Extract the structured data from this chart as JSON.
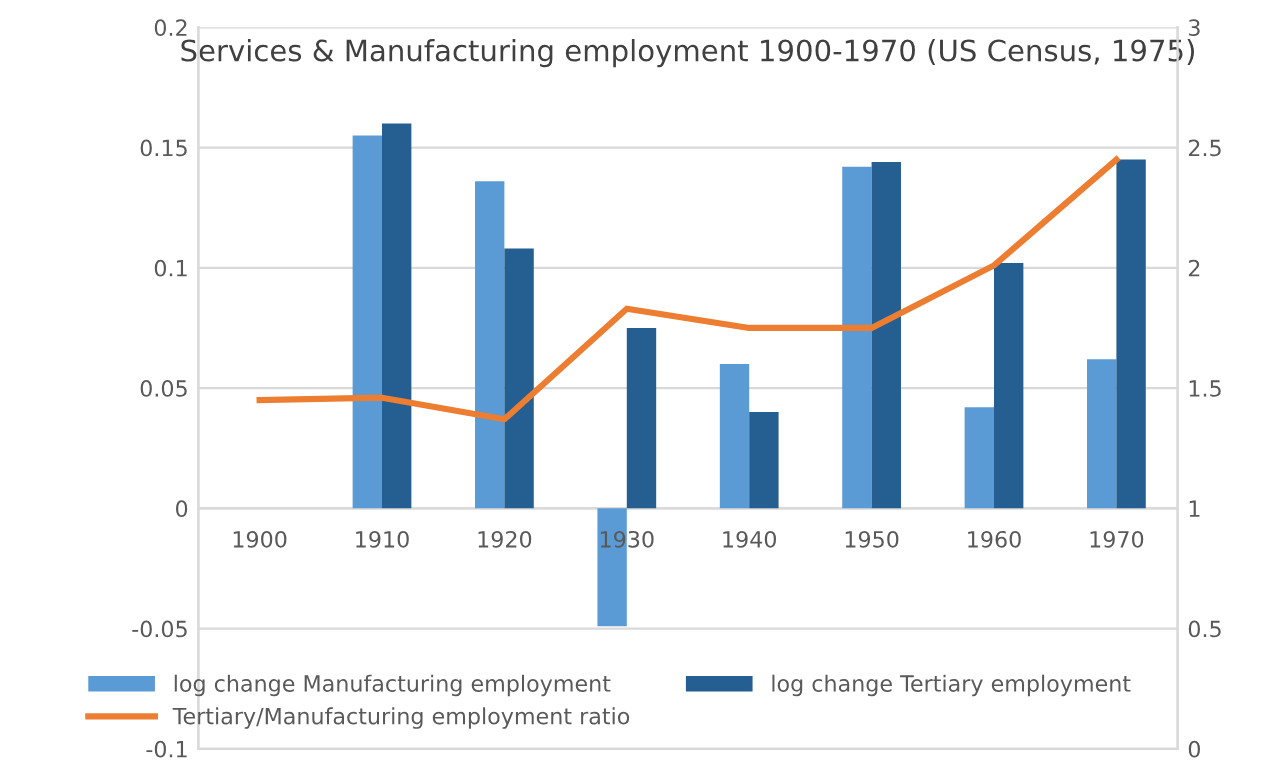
{
  "chart_data": {
    "type": "bar",
    "title": "Services & Manufacturing employment 1900-1970 (US Census, 1975)",
    "categories": [
      "1900",
      "1910",
      "1920",
      "1930",
      "1940",
      "1950",
      "1960",
      "1970"
    ],
    "series": [
      {
        "name": "log change Manufacturing employment",
        "color": "#5b9bd5",
        "values": [
          null,
          0.155,
          0.136,
          -0.049,
          0.06,
          0.142,
          0.042,
          0.062
        ]
      },
      {
        "name": "log change Tertiary employment",
        "color": "#255e91",
        "values": [
          null,
          0.16,
          0.108,
          0.075,
          0.04,
          0.144,
          0.102,
          0.145
        ]
      },
      {
        "name": "Tertiary/Manufacturing employment ratio",
        "type": "line",
        "axis": "y2",
        "color": "#ed7d31",
        "values": [
          1.45,
          1.46,
          1.37,
          1.83,
          1.75,
          1.75,
          2.01,
          2.45
        ]
      }
    ],
    "ylim": [
      -0.1,
      0.2
    ],
    "yticks": [
      -0.1,
      -0.05,
      0,
      0.05,
      0.1,
      0.15,
      0.2
    ],
    "y2lim": [
      0,
      3
    ],
    "y2ticks": [
      0,
      0.5,
      1,
      1.5,
      2,
      2.5,
      3
    ],
    "grid": "y",
    "legend": "bottom"
  }
}
